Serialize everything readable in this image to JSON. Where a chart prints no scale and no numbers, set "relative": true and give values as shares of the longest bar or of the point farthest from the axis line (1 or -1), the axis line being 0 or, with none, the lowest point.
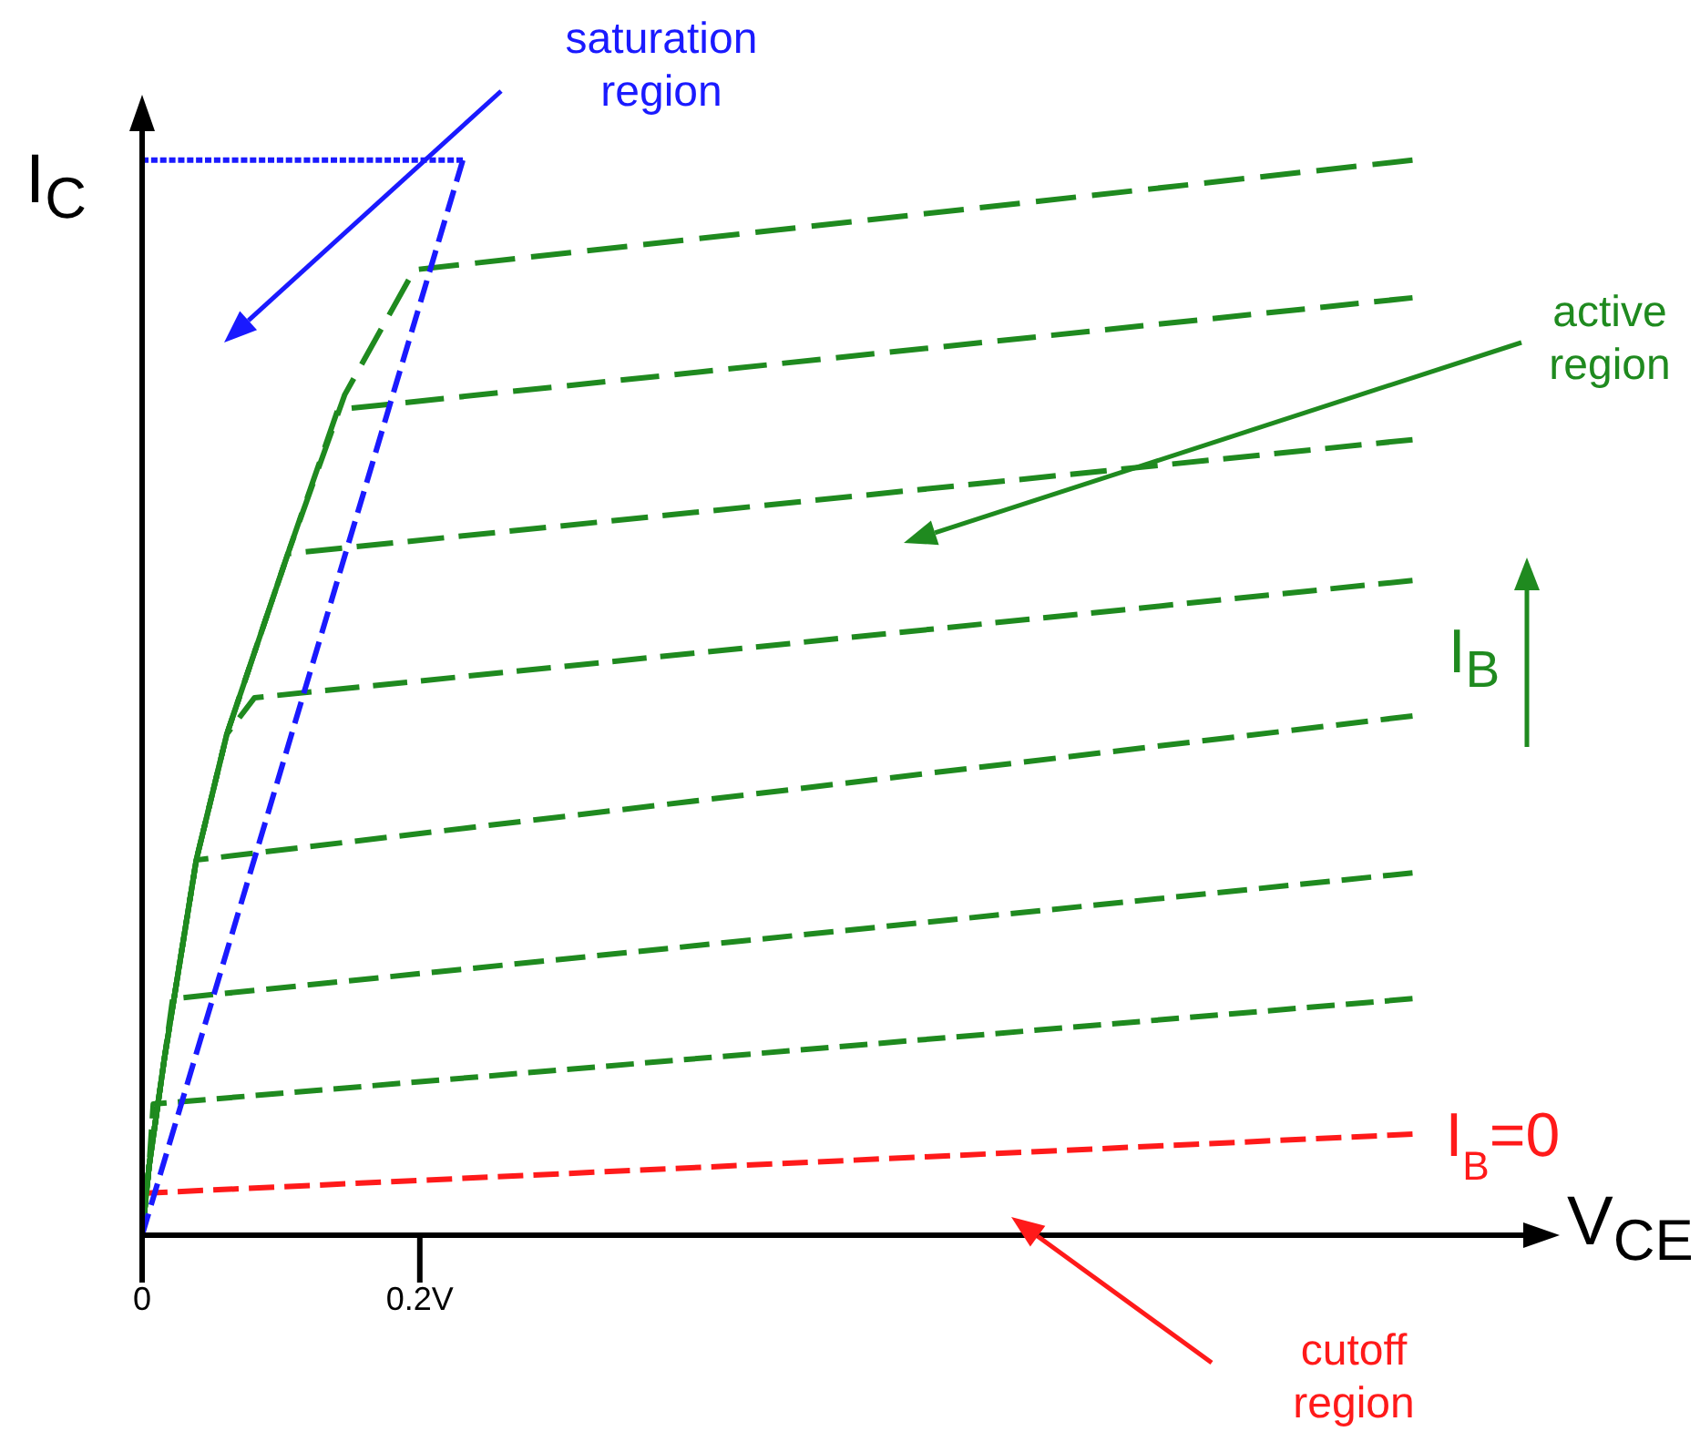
{
  "chart_data": {
    "type": "line",
    "relative": true,
    "xlabel": "V$_{CE}$",
    "ylabel": "I$_{C}$",
    "xlim": [
      0,
      1.0
    ],
    "xticks": [
      0,
      {
        "value": 0.2,
        "label": "0.2V"
      }
    ],
    "line_style": "dashed",
    "marker": "none",
    "annotations": [
      "saturation region",
      "active region",
      "I$_{B}$",
      "cutoff region"
    ],
    "series": [
      {
        "color": "#ff1a1a",
        "name": "I$_{B}$=0",
        "x": [
          0,
          0.915
        ],
        "values": [
          0.039,
          0.094
        ]
      },
      {
        "color": "#1f8a1f",
        "x": [
          0,
          0.005,
          0.008,
          0.915
        ],
        "values": [
          0,
          0.064,
          0.122,
          0.22
        ]
      },
      {
        "color": "#1f8a1f",
        "x": [
          0,
          0.005,
          0.016,
          0.022,
          0.915
        ],
        "values": [
          0,
          0.064,
          0.164,
          0.22,
          0.337
        ]
      },
      {
        "color": "#1f8a1f",
        "x": [
          0,
          0.005,
          0.016,
          0.039,
          0.915
        ],
        "values": [
          0,
          0.064,
          0.164,
          0.349,
          0.483
        ]
      },
      {
        "color": "#1f8a1f",
        "x": [
          0,
          0.005,
          0.016,
          0.039,
          0.061,
          0.081,
          0.915
        ],
        "values": [
          0,
          0.064,
          0.164,
          0.349,
          0.466,
          0.5,
          0.609
        ]
      },
      {
        "color": "#1f8a1f",
        "x": [
          0,
          0.005,
          0.016,
          0.039,
          0.061,
          0.105,
          0.915
        ],
        "values": [
          0,
          0.064,
          0.164,
          0.349,
          0.466,
          0.634,
          0.74
        ]
      },
      {
        "color": "#1f8a1f",
        "x": [
          0,
          0.005,
          0.016,
          0.039,
          0.061,
          0.105,
          0.141,
          0.915
        ],
        "values": [
          0,
          0.064,
          0.164,
          0.349,
          0.466,
          0.634,
          0.768,
          0.872
        ]
      },
      {
        "color": "#1f8a1f",
        "x": [
          0,
          0.005,
          0.016,
          0.039,
          0.061,
          0.105,
          0.146,
          0.196,
          0.915
        ],
        "values": [
          0,
          0.064,
          0.164,
          0.349,
          0.466,
          0.634,
          0.782,
          0.898,
          1.0
        ]
      },
      {
        "color": "#1a1aff",
        "x": [
          0,
          0.231
        ],
        "values": [
          0,
          1.0
        ]
      },
      {
        "color": "#1a1aff",
        "x": [
          0,
          0.231
        ],
        "values": [
          1.0,
          1.0
        ]
      }
    ]
  }
}
